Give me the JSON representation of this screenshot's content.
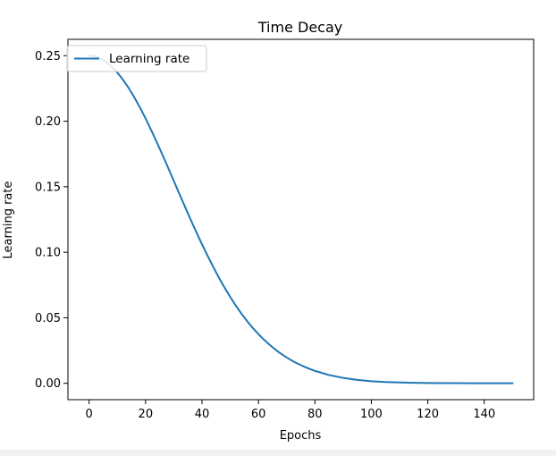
{
  "chart_data": {
    "type": "line",
    "title": "Time Decay",
    "xlabel": "Epochs",
    "ylabel": "Learning rate",
    "xlim": [
      -7.5,
      157.5
    ],
    "ylim": [
      -0.0125,
      0.2625
    ],
    "xticks": [
      0,
      20,
      40,
      60,
      80,
      100,
      120,
      140
    ],
    "yticks": [
      0.0,
      0.05,
      0.1,
      0.15,
      0.2,
      0.25
    ],
    "xtick_labels": [
      "0",
      "20",
      "40",
      "60",
      "80",
      "100",
      "120",
      "140"
    ],
    "ytick_labels": [
      "0.00",
      "0.05",
      "0.10",
      "0.15",
      "0.20",
      "0.25"
    ],
    "grid": false,
    "legend_position": "upper-left",
    "series": [
      {
        "name": "Learning rate",
        "color": "#1f77b4",
        "x": [
          0,
          2,
          4,
          6,
          8,
          10,
          12,
          14,
          16,
          18,
          20,
          22,
          24,
          26,
          28,
          30,
          32,
          34,
          36,
          38,
          40,
          42,
          44,
          46,
          48,
          50,
          52,
          54,
          56,
          58,
          60,
          62,
          64,
          66,
          68,
          70,
          72,
          74,
          76,
          78,
          80,
          85,
          90,
          95,
          100,
          105,
          110,
          115,
          120,
          125,
          130,
          135,
          140,
          145,
          150
        ],
        "values": [
          0.25,
          0.2495,
          0.2479,
          0.2453,
          0.2417,
          0.2372,
          0.2317,
          0.2254,
          0.2183,
          0.2105,
          0.2022,
          0.1932,
          0.1839,
          0.1743,
          0.1645,
          0.1545,
          0.1445,
          0.1346,
          0.1248,
          0.1153,
          0.1061,
          0.0972,
          0.0887,
          0.0806,
          0.073,
          0.0659,
          0.0592,
          0.0531,
          0.0474,
          0.0422,
          0.0375,
          0.0332,
          0.0293,
          0.0257,
          0.0225,
          0.0197,
          0.0171,
          0.0149,
          0.0129,
          0.0111,
          0.0095,
          0.0063,
          0.0041,
          0.0026,
          0.0016,
          0.001,
          0.0006,
          0.0004,
          0.0002,
          0.0001,
          0.0001,
          0.0,
          0.0,
          0.0,
          0.0
        ]
      }
    ]
  }
}
